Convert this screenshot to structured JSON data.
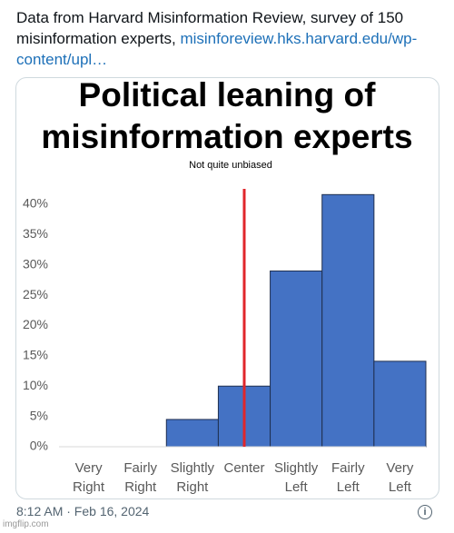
{
  "post": {
    "text": "Data from Harvard Misinformation Review, survey of 150 misinformation experts,",
    "link": "misinforeview.hks.harvard.edu/wp-content/upl…",
    "timestamp": "8:12 AM · Feb 16, 2024",
    "watermark": "imgflip.com"
  },
  "chart_data": {
    "type": "bar",
    "title_lines": [
      "Political leaning of",
      "misinformation experts"
    ],
    "subtitle": "Not quite unbiased",
    "categories": [
      "Very Right",
      "Fairly Right",
      "Slightly Right",
      "Center",
      "Slightly Left",
      "Fairly Left",
      "Very Left"
    ],
    "values": [
      0,
      0,
      4.5,
      10,
      29,
      41.6,
      14.1
    ],
    "color": "#4472c4",
    "ylim": [
      0,
      40
    ],
    "yticks": [
      {
        "value": 0,
        "label": "0%"
      },
      {
        "value": 5,
        "label": "5%"
      },
      {
        "value": 10,
        "label": "10%"
      },
      {
        "value": 15,
        "label": "15%"
      },
      {
        "value": 20,
        "label": "20%"
      },
      {
        "value": 25,
        "label": "25%"
      },
      {
        "value": 30,
        "label": "30%"
      },
      {
        "value": 35,
        "label": "35%"
      },
      {
        "value": 40,
        "label": "40%"
      }
    ],
    "grid": false,
    "marker_line_color": "#e0262b"
  }
}
